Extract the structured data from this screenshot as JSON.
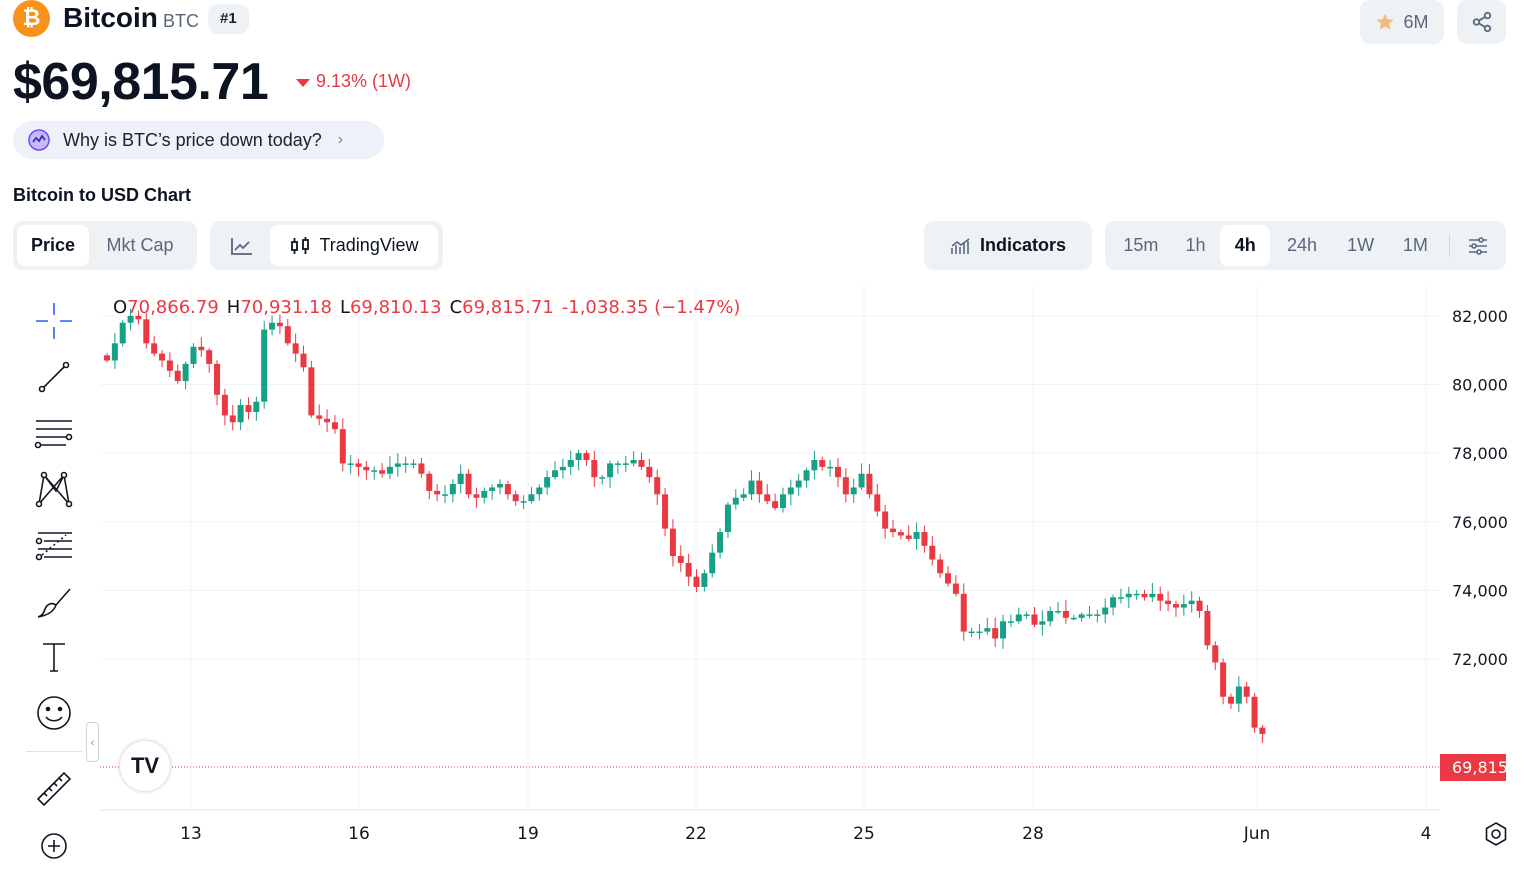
{
  "coin": {
    "name": "Bitcoin",
    "symbol": "BTC",
    "rank": "#1",
    "logo_glyph": "₿",
    "watchlist_count": "6M",
    "price": "$69,815.71",
    "change": "9.13% (1W)",
    "ai_question": "Why is BTC’s price down today?"
  },
  "chart_header": {
    "title": "Bitcoin to USD Chart"
  },
  "toolbar": {
    "metric_tabs": [
      "Price",
      "Mkt Cap"
    ],
    "active_metric": "Price",
    "tradingview_label": "TradingView",
    "indicators_label": "Indicators",
    "timeframes": [
      "15m",
      "1h",
      "4h",
      "24h",
      "1W",
      "1M"
    ],
    "active_timeframe": "4h"
  },
  "ohlc": {
    "open_key": "O",
    "open": "70,866.79",
    "high_key": "H",
    "high": "70,931.18",
    "low_key": "L",
    "low": "69,810.13",
    "close_key": "C",
    "close": "69,815.71",
    "change": "-1,038.35 (−1.47%)"
  },
  "tools": [
    "crosshair-icon",
    "trend-line-icon",
    "horizontal-lines-icon",
    "pattern-icon",
    "fib-icon",
    "brush-icon",
    "text-icon",
    "emoji-icon",
    "ruler-icon",
    "zoom-in-icon"
  ],
  "tv_logo": "TV",
  "current_price_tag": "69,815",
  "colors": {
    "up": "#16a085",
    "down": "#ea3943",
    "accent": "#f7931a"
  },
  "chart_data": {
    "type": "candlestick",
    "interval": "4h",
    "yaxis_ticks": [
      "82,000",
      "80,000",
      "78,000",
      "76,000",
      "74,000",
      "72,000"
    ],
    "ylim": [
      67600,
      82900
    ],
    "xaxis_ticks": [
      "13",
      "16",
      "19",
      "22",
      "25",
      "28",
      "Jun",
      "4"
    ],
    "last_price": 69815.71,
    "closes": [
      80700,
      81200,
      81800,
      82000,
      81900,
      81200,
      80900,
      80700,
      80400,
      80100,
      80600,
      81100,
      81000,
      80600,
      79700,
      79100,
      78900,
      79400,
      79200,
      79500,
      81600,
      81800,
      81700,
      81200,
      80900,
      80500,
      79100,
      79000,
      78900,
      78700,
      77700,
      77700,
      77600,
      77500,
      77500,
      77400,
      77600,
      77700,
      77700,
      77700,
      77400,
      76900,
      76800,
      76800,
      77100,
      77400,
      76800,
      76700,
      76900,
      77000,
      77100,
      76800,
      76600,
      76600,
      76800,
      77000,
      77300,
      77500,
      77600,
      77800,
      78000,
      77800,
      77300,
      77300,
      77700,
      77700,
      77700,
      77800,
      77600,
      77300,
      76800,
      75800,
      75000,
      74800,
      74400,
      74100,
      74500,
      75100,
      75700,
      76500,
      76700,
      76800,
      77200,
      76800,
      76600,
      76400,
      76800,
      77000,
      77200,
      77500,
      77800,
      77600,
      77600,
      77300,
      76800,
      77000,
      77400,
      76800,
      76300,
      75800,
      75700,
      75600,
      75500,
      75700,
      75300,
      74900,
      74500,
      74200,
      73900,
      72800,
      72800,
      72800,
      72900,
      72600,
      73100,
      73100,
      73300,
      73300,
      73000,
      73100,
      73400,
      73400,
      73200,
      73200,
      73300,
      73300,
      73300,
      73500,
      73800,
      73800,
      73900,
      73900,
      73800,
      73900,
      73700,
      73600,
      73500,
      73600,
      73700,
      73400,
      72400,
      71900,
      70900,
      70700,
      71200,
      70900,
      70000,
      69815.71
    ]
  }
}
